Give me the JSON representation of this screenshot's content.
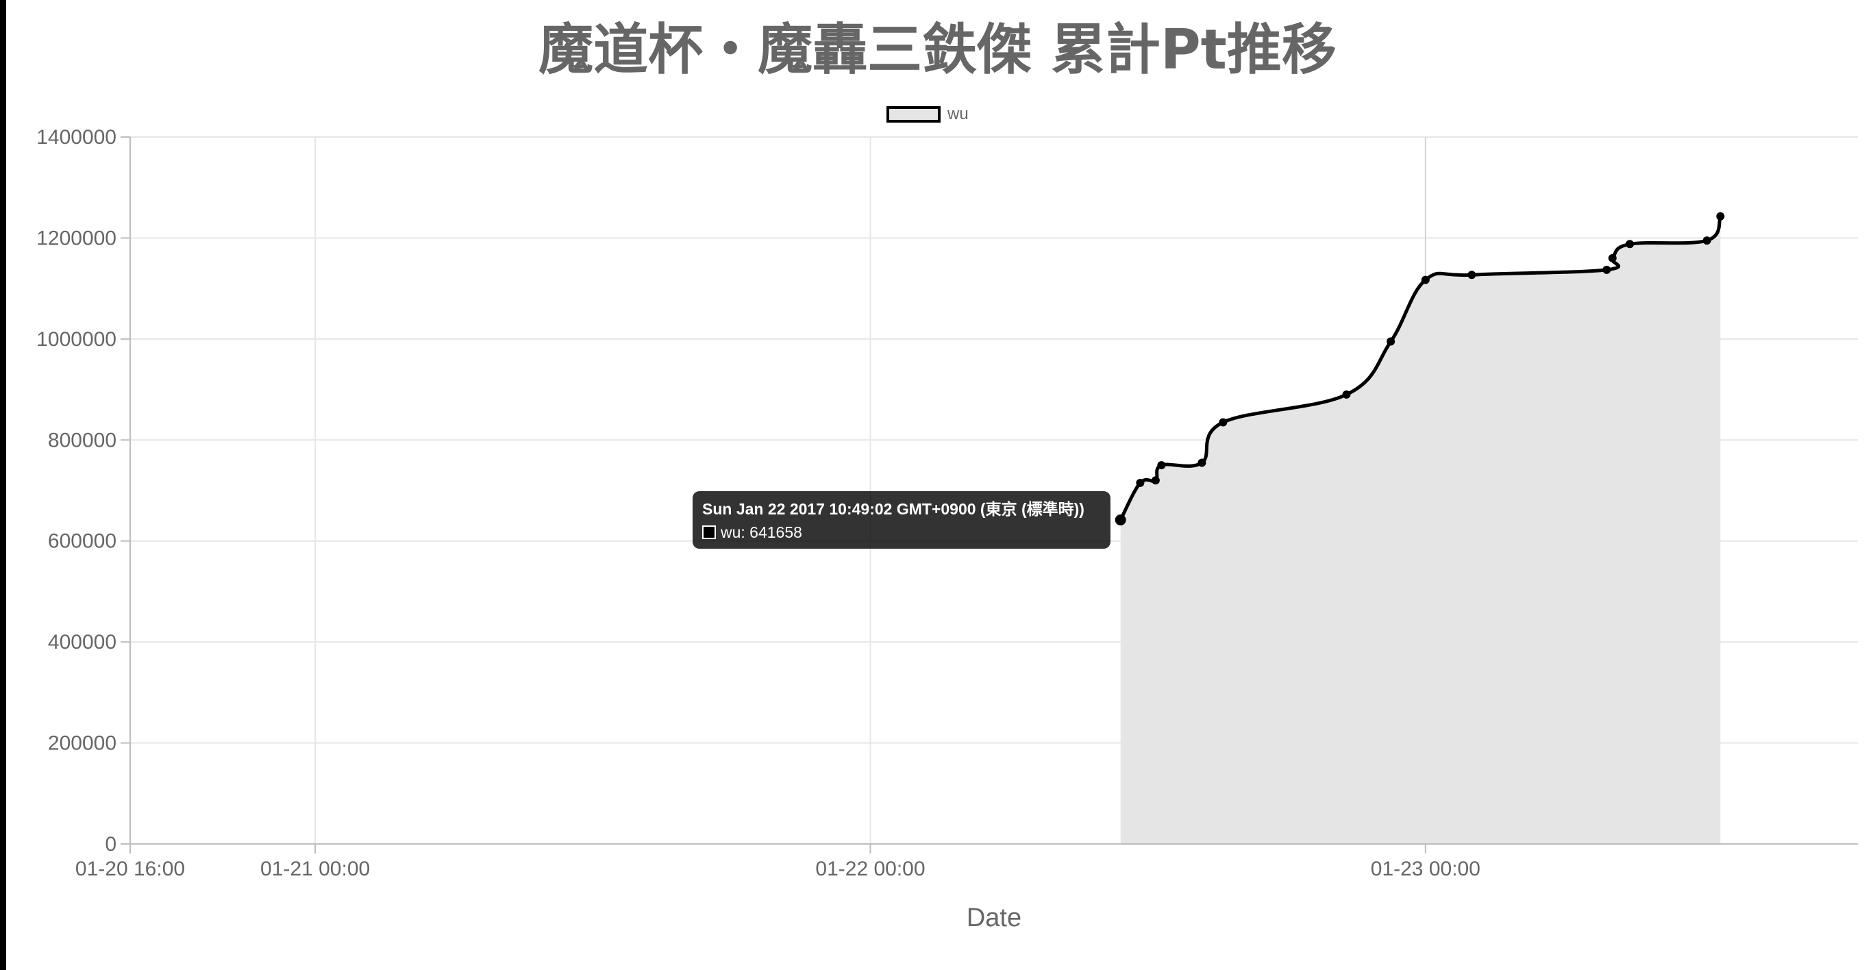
{
  "chart_data": {
    "type": "line",
    "title": "魔道杯・魔轟三鉄傑 累計Pt推移",
    "xlabel": "Date",
    "ylabel": "",
    "x_axis_type": "time",
    "xlim": [
      "2017-01-20 16:00",
      "2017-01-23 18:00"
    ],
    "x_tick_labels": [
      "01-20 16:00",
      "01-21 00:00",
      "01-22 00:00",
      "01-23 00:00"
    ],
    "ylim": [
      0,
      1400000
    ],
    "y_tick_labels": [
      "0",
      "200000",
      "400000",
      "600000",
      "800000",
      "1000000",
      "1200000",
      "1400000"
    ],
    "grid": true,
    "legend_position": "top-center",
    "series": [
      {
        "name": "wu",
        "line_color": "#000000",
        "fill_color": "#e5e5e5",
        "points": [
          {
            "x": "2017-01-22 10:49",
            "y": 641658
          },
          {
            "x": "2017-01-22 11:40",
            "y": 715000
          },
          {
            "x": "2017-01-22 12:20",
            "y": 720000
          },
          {
            "x": "2017-01-22 12:35",
            "y": 750000
          },
          {
            "x": "2017-01-22 14:20",
            "y": 755000
          },
          {
            "x": "2017-01-22 15:15",
            "y": 835000
          },
          {
            "x": "2017-01-22 20:35",
            "y": 890000
          },
          {
            "x": "2017-01-22 22:30",
            "y": 995000
          },
          {
            "x": "2017-01-23 00:00",
            "y": 1117000
          },
          {
            "x": "2017-01-23 02:00",
            "y": 1127000
          },
          {
            "x": "2017-01-23 07:50",
            "y": 1137000
          },
          {
            "x": "2017-01-23 08:05",
            "y": 1160000
          },
          {
            "x": "2017-01-23 08:50",
            "y": 1188000
          },
          {
            "x": "2017-01-23 12:10",
            "y": 1195000
          },
          {
            "x": "2017-01-23 12:45",
            "y": 1243000
          }
        ]
      }
    ],
    "tooltip": {
      "title": "Sun Jan 22 2017 10:49:02 GMT+0900 (東京 (標準時))",
      "body": "wu: 641658"
    }
  }
}
